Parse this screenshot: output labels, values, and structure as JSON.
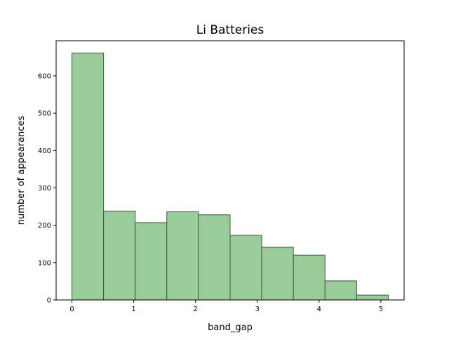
{
  "chart_data": {
    "type": "bar",
    "title": "Li Batteries",
    "xlabel": "band_gap",
    "ylabel": "number of appearances",
    "bin_edges": [
      0.0,
      0.512,
      1.024,
      1.536,
      2.048,
      2.56,
      3.072,
      3.584,
      4.096,
      4.608,
      5.12
    ],
    "values": [
      661,
      238,
      207,
      236,
      228,
      173,
      141,
      120,
      51,
      13
    ],
    "xlim": [
      -0.256,
      5.376
    ],
    "ylim": [
      0,
      694
    ],
    "xticks": [
      0,
      1,
      2,
      3,
      4,
      5
    ],
    "xtick_labels": [
      "0",
      "1",
      "2",
      "3",
      "4",
      "5"
    ],
    "yticks": [
      0,
      100,
      200,
      300,
      400,
      500,
      600
    ],
    "ytick_labels": [
      "0",
      "100",
      "200",
      "300",
      "400",
      "500",
      "600"
    ],
    "grid": false,
    "colors": {
      "bar_fill": "#99cc99",
      "bar_edge": "#3e5a3e"
    }
  }
}
